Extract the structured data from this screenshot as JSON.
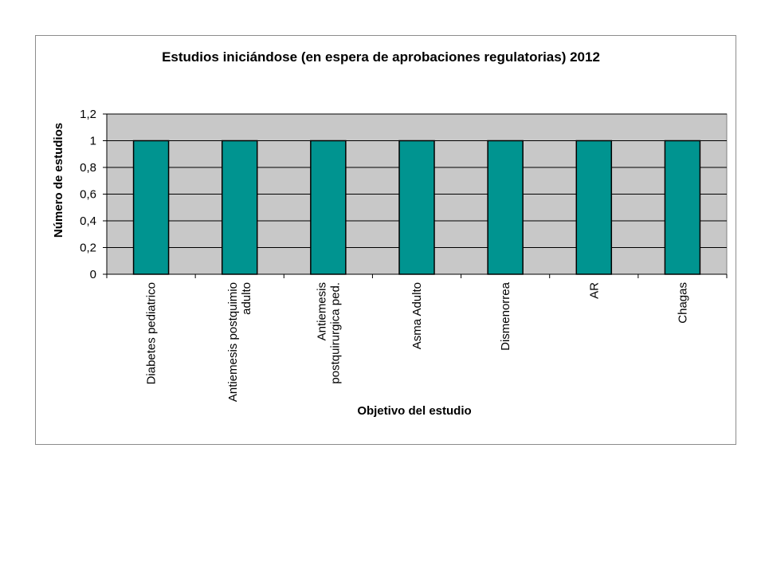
{
  "chart_data": {
    "type": "bar",
    "title": "Estudios iniciándose (en espera de aprobaciones regulatorias) 2012",
    "xlabel": "Objetivo del estudio",
    "ylabel": "Número de estudios",
    "categories": [
      [
        "Diabetes pediatrico"
      ],
      [
        "Antiemesis postquimio",
        "adulto"
      ],
      [
        "Antiemesis",
        "postquirurgica ped."
      ],
      [
        "Asma Adulto"
      ],
      [
        "Dismenorrea"
      ],
      [
        "AR"
      ],
      [
        "Chagas"
      ]
    ],
    "values": [
      1,
      1,
      1,
      1,
      1,
      1,
      1
    ],
    "ylim": [
      0,
      1.2
    ],
    "yticks": [
      0,
      0.2,
      0.4,
      0.6,
      0.8,
      1,
      1.2
    ],
    "ytick_labels": [
      "0",
      "0,2",
      "0,4",
      "0,6",
      "0,8",
      "1",
      "1,2"
    ],
    "grid": true,
    "legend": "none",
    "colors": {
      "bar": "#009490",
      "bar_edge": "#000000",
      "plot_bg": "#c8c8c8",
      "gridline": "#000000",
      "frame_border": "#8c8c8c"
    }
  }
}
